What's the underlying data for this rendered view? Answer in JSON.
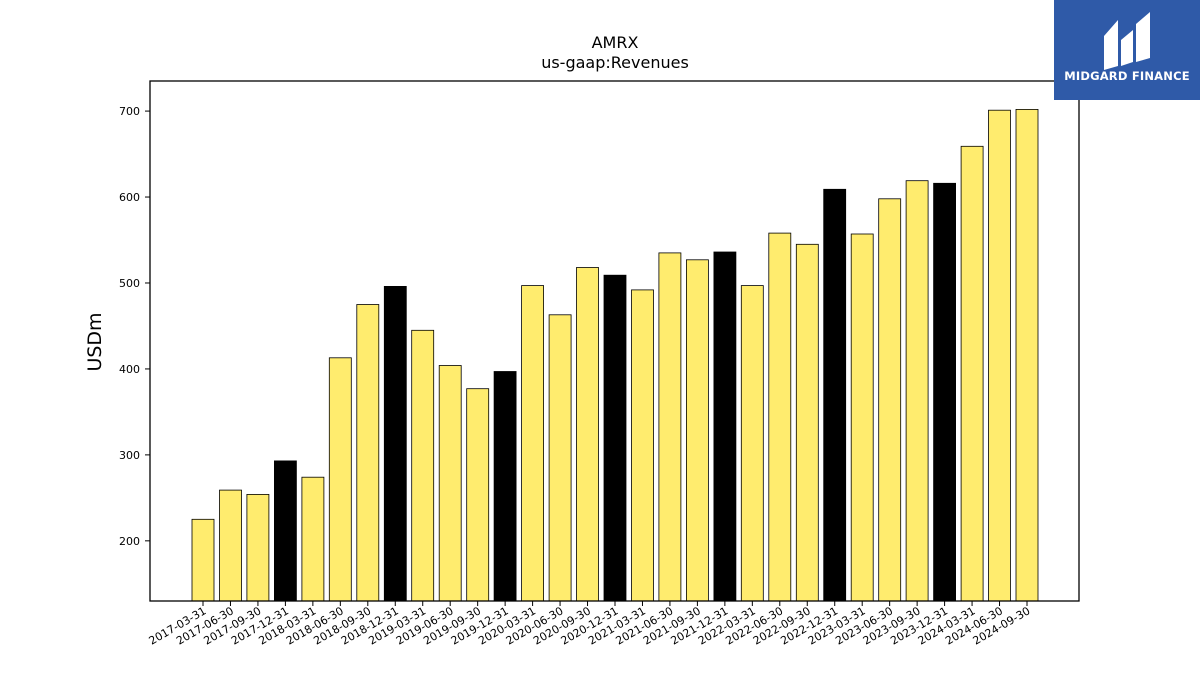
{
  "logo": {
    "text": "MIDGARD FINANCE"
  },
  "colors": {
    "bar_default": "#ffec6e",
    "bar_year_end": "#000000",
    "edge": "#000000",
    "logo_bg": "#2f5aa8"
  },
  "chart_data": {
    "type": "bar",
    "title": "AMRX",
    "subtitle": "us-gaap:Revenues",
    "xlabel": "",
    "ylabel": "USDm",
    "ylim": [
      130,
      735
    ],
    "yticks": [
      200,
      300,
      400,
      500,
      600,
      700
    ],
    "grid": false,
    "categories": [
      "2017-03-31",
      "2017-06-30",
      "2017-09-30",
      "2017-12-31",
      "2018-03-31",
      "2018-06-30",
      "2018-09-30",
      "2018-12-31",
      "2019-03-31",
      "2019-06-30",
      "2019-09-30",
      "2019-12-31",
      "2020-03-31",
      "2020-06-30",
      "2020-09-30",
      "2020-12-31",
      "2021-03-31",
      "2021-06-30",
      "2021-09-30",
      "2021-12-31",
      "2022-03-31",
      "2022-06-30",
      "2022-09-30",
      "2022-12-31",
      "2023-03-31",
      "2023-06-30",
      "2023-09-30",
      "2023-12-31",
      "2024-03-31",
      "2024-06-30",
      "2024-09-30"
    ],
    "values": [
      225,
      259,
      254,
      293,
      274,
      413,
      475,
      496,
      445,
      404,
      377,
      397,
      497,
      463,
      518,
      509,
      492,
      535,
      527,
      536,
      497,
      558,
      545,
      609,
      557,
      598,
      619,
      616,
      659,
      701,
      702
    ],
    "highlight": [
      false,
      false,
      false,
      true,
      false,
      false,
      false,
      true,
      false,
      false,
      false,
      true,
      false,
      false,
      false,
      true,
      false,
      false,
      false,
      true,
      false,
      false,
      false,
      true,
      false,
      false,
      false,
      true,
      false,
      false,
      false
    ]
  }
}
